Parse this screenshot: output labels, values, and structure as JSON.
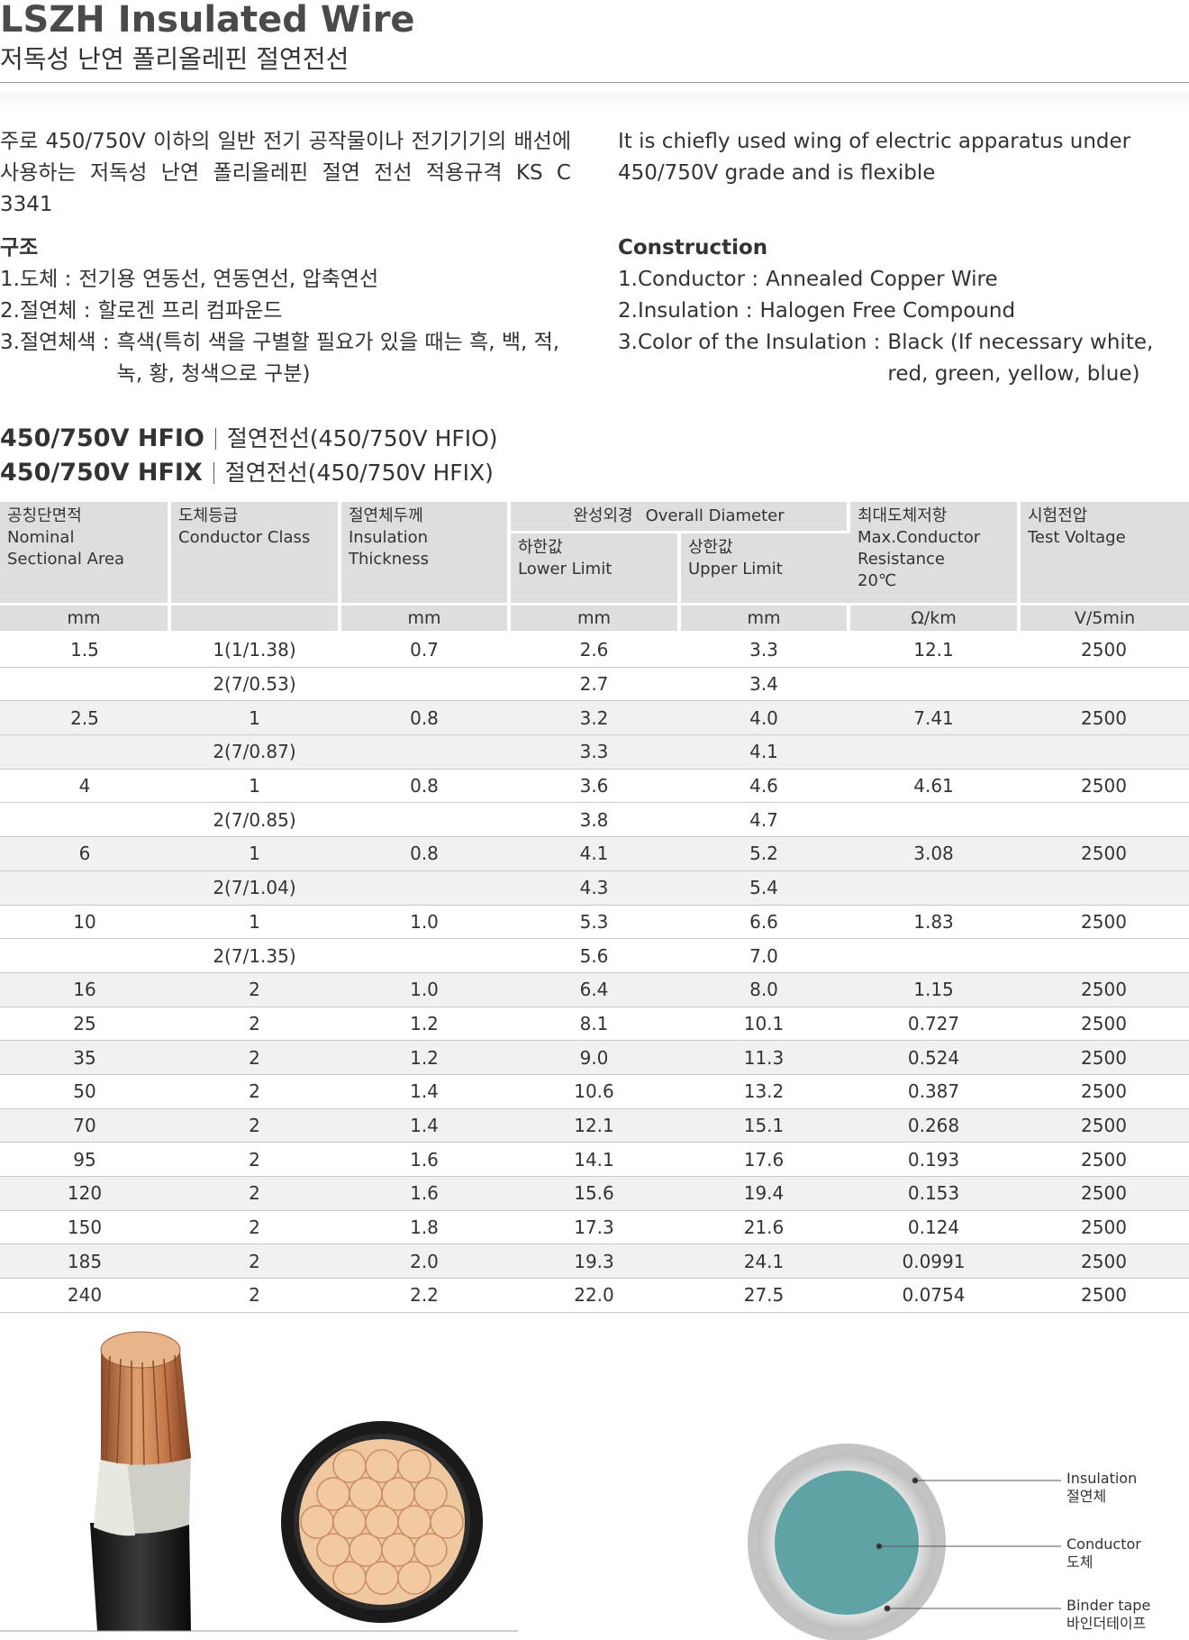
{
  "header": {
    "title": "LSZH Insulated Wire",
    "subtitle": "저독성 난연 폴리올레핀 절연전선"
  },
  "description": {
    "ko": "주로 450/750V 이하의 일반 전기 공작물이나 전기기기의 배선에 사용하는 저독성 난연 폴리올레핀 절연 전선 적용규격 KS C 3341",
    "en": "It is chiefly used wing of electric apparatus under 450/750V grade and is flexible"
  },
  "construction": {
    "ko": {
      "heading": "구조",
      "items": [
        {
          "label": "1.도체 :",
          "text": "전기용 연동선, 연동연선, 압축연선"
        },
        {
          "label": "2.절연체 :",
          "text": "할로겐 프리 컴파운드"
        },
        {
          "label": "3.절연체색 :",
          "text": "흑색(특히 색을 구별할 필요가 있을 때는 흑, 백, 적, 녹, 황, 청색으로 구분)"
        }
      ]
    },
    "en": {
      "heading": "Construction",
      "items": [
        {
          "label": "1.Conductor :",
          "text": "Annealed Copper Wire"
        },
        {
          "label": "2.Insulation :",
          "text": "Halogen Free Compound"
        },
        {
          "label": "3.Color of the Insulation :",
          "text": "Black (If necessary white, red, green, yellow, blue)"
        }
      ]
    }
  },
  "products": [
    {
      "code": "450/750V HFIO",
      "desc": "절연전선(450/750V HFIO)"
    },
    {
      "code": "450/750V HFIX",
      "desc": "절연전선(450/750V HFIX)"
    }
  ],
  "table": {
    "columns": [
      {
        "ko": "공칭단면적",
        "en": [
          "Nominal",
          "Sectional Area"
        ],
        "unit": "mm"
      },
      {
        "ko": "도체등급",
        "en": [
          "Conductor Class"
        ]
      },
      {
        "ko": "절연체두께",
        "en": [
          "Insulation Thickness"
        ],
        "unit": "mm"
      },
      {
        "ko": "하한값",
        "en": [
          "Lower Limit"
        ],
        "unit": "mm"
      },
      {
        "ko": "상한값",
        "en": [
          "Upper Limit"
        ],
        "unit": "mm"
      },
      {
        "ko": "최대도체저항",
        "en": [
          "Max.Conductor",
          "Resistance",
          "20℃"
        ],
        "unit": "Ω/km"
      },
      {
        "ko": "시험전압",
        "en": [
          "Test Voltage"
        ],
        "unit": "V/5min"
      }
    ],
    "diameter_group": {
      "ko": "완성외경",
      "en": "Overall Diameter"
    },
    "rows": [
      [
        "1.5",
        "1(1/1.38)",
        "0.7",
        "2.6",
        "3.3",
        "12.1",
        "2500"
      ],
      [
        null,
        "2(7/0.53)",
        null,
        "2.7",
        "3.4",
        null,
        null
      ],
      [
        "2.5",
        "1",
        "0.8",
        "3.2",
        "4.0",
        "7.41",
        "2500"
      ],
      [
        null,
        "2(7/0.87)",
        null,
        "3.3",
        "4.1",
        null,
        null
      ],
      [
        "4",
        "1",
        "0.8",
        "3.6",
        "4.6",
        "4.61",
        "2500"
      ],
      [
        null,
        "2(7/0.85)",
        null,
        "3.8",
        "4.7",
        null,
        null
      ],
      [
        "6",
        "1",
        "0.8",
        "4.1",
        "5.2",
        "3.08",
        "2500"
      ],
      [
        null,
        "2(7/1.04)",
        null,
        "4.3",
        "5.4",
        null,
        null
      ],
      [
        "10",
        "1",
        "1.0",
        "5.3",
        "6.6",
        "1.83",
        "2500"
      ],
      [
        null,
        "2(7/1.35)",
        null,
        "5.6",
        "7.0",
        null,
        null
      ],
      [
        "16",
        "2",
        "1.0",
        "6.4",
        "8.0",
        "1.15",
        "2500"
      ],
      [
        "25",
        "2",
        "1.2",
        "8.1",
        "10.1",
        "0.727",
        "2500"
      ],
      [
        "35",
        "2",
        "1.2",
        "9.0",
        "11.3",
        "0.524",
        "2500"
      ],
      [
        "50",
        "2",
        "1.4",
        "10.6",
        "13.2",
        "0.387",
        "2500"
      ],
      [
        "70",
        "2",
        "1.4",
        "12.1",
        "15.1",
        "0.268",
        "2500"
      ],
      [
        "95",
        "2",
        "1.6",
        "14.1",
        "17.6",
        "0.193",
        "2500"
      ],
      [
        "120",
        "2",
        "1.6",
        "15.6",
        "19.4",
        "0.153",
        "2500"
      ],
      [
        "150",
        "2",
        "1.8",
        "17.3",
        "21.6",
        "0.124",
        "2500"
      ],
      [
        "185",
        "2",
        "2.0",
        "19.3",
        "24.1",
        "0.0991",
        "2500"
      ],
      [
        "240",
        "2",
        "2.2",
        "22.0",
        "27.5",
        "0.0754",
        "2500"
      ]
    ]
  },
  "diagram": {
    "labels": [
      {
        "en": "Insulation",
        "ko": "절연체"
      },
      {
        "en": "Conductor",
        "ko": "도체"
      },
      {
        "en": "Binder tape",
        "ko": "바인더테이프"
      }
    ]
  }
}
